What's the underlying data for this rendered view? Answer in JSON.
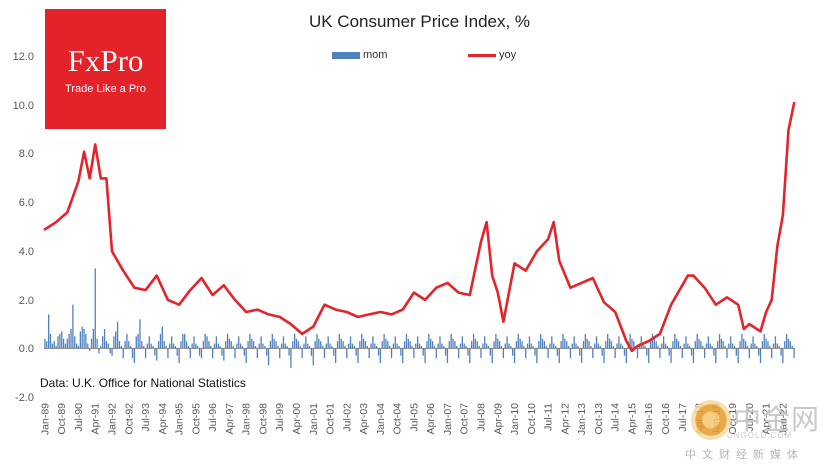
{
  "logo": {
    "name": "FxPro",
    "slogan": "Trade Like a Pro"
  },
  "source_note": "Data: U.K. Office for National Statistics",
  "watermark": {
    "brand": "中金网",
    "url": "CNGOLD.COM",
    "subtitle": "中文财经新媒体"
  },
  "colors": {
    "mom": "#4f81bd",
    "yoy": "#e5232b",
    "logo_bg": "#e4222a",
    "axis": "#808080",
    "grid": "#d9d9d9"
  },
  "chart_data": {
    "type": "bar+line",
    "title": "UK Consumer  Price Index, %",
    "legend_placement": "top-center",
    "grid": false,
    "ylim": [
      -2.0,
      12.0
    ],
    "yticks": [
      "-2.0",
      "0.0",
      "2.0",
      "4.0",
      "6.0",
      "8.0",
      "10.0",
      "12.0"
    ],
    "x_start": "Jan-89",
    "x_end": "Jul-22",
    "x_tick_labels": [
      "Jan-89",
      "Oct-89",
      "Jul-90",
      "Apr-91",
      "Jan-92",
      "Oct-92",
      "Jul-93",
      "Apr-94",
      "Jan-95",
      "Oct-95",
      "Jul-96",
      "Apr-97",
      "Jan-98",
      "Oct-98",
      "Jul-99",
      "Apr-00",
      "Jan-01",
      "Oct-01",
      "Jul-02",
      "Apr-03",
      "Jan-04",
      "Oct-04",
      "Jul-05",
      "Apr-06",
      "Jan-07",
      "Oct-07",
      "Jul-08",
      "Apr-09",
      "Jan-10",
      "Oct-10",
      "Jul-11",
      "Apr-12",
      "Jan-13",
      "Oct-13",
      "Jul-14",
      "Apr-15",
      "Jan-16",
      "Oct-16",
      "Jul-17",
      "Apr-18",
      "Jan-19",
      "Oct-19",
      "Jul-20",
      "Apr-21",
      "Jan-22"
    ],
    "series": [
      {
        "name": "mom",
        "type": "bar",
        "values": [
          0.4,
          0.3,
          1.4,
          0.6,
          0.2,
          0.3,
          0.1,
          0.5,
          0.6,
          0.7,
          0.4,
          0.2,
          0.4,
          0.6,
          0.8,
          1.8,
          0.5,
          0.2,
          0.1,
          0.7,
          0.9,
          0.8,
          0.6,
          0.2,
          -0.1,
          0.4,
          0.8,
          3.3,
          0.4,
          -0.2,
          0.1,
          0.5,
          0.8,
          0.3,
          0.2,
          -0.2,
          -0.3,
          0.5,
          0.7,
          1.1,
          0.3,
          0.1,
          -0.4,
          0.3,
          0.6,
          0.3,
          0.1,
          -0.4,
          -0.6,
          0.5,
          0.6,
          1.2,
          0.3,
          0.1,
          -0.4,
          0.2,
          0.5,
          0.2,
          0.1,
          -0.3,
          -0.5,
          0.3,
          0.6,
          0.9,
          0.3,
          0.1,
          -0.4,
          0.2,
          0.5,
          0.2,
          0.1,
          -0.3,
          -0.6,
          0.3,
          0.6,
          0.6,
          0.3,
          0.1,
          -0.4,
          0.2,
          0.5,
          0.2,
          0.1,
          -0.3,
          -0.4,
          0.3,
          0.6,
          0.5,
          0.3,
          0.1,
          -0.4,
          0.2,
          0.5,
          0.2,
          0.1,
          -0.3,
          -0.5,
          0.3,
          0.6,
          0.4,
          0.3,
          0.1,
          -0.4,
          0.2,
          0.5,
          0.2,
          0.1,
          -0.3,
          -0.6,
          0.3,
          0.6,
          0.4,
          0.3,
          0.1,
          -0.4,
          0.2,
          0.5,
          0.2,
          0.1,
          -0.3,
          -0.7,
          0.3,
          0.6,
          0.4,
          0.3,
          0.1,
          -0.4,
          0.2,
          0.5,
          0.2,
          0.1,
          -0.3,
          -0.8,
          0.3,
          0.6,
          0.4,
          0.3,
          0.1,
          -0.4,
          0.2,
          0.5,
          0.2,
          0.1,
          -0.3,
          -0.7,
          0.3,
          0.6,
          0.4,
          0.3,
          0.1,
          -0.4,
          0.2,
          0.5,
          0.2,
          0.1,
          -0.3,
          -0.6,
          0.3,
          0.6,
          0.4,
          0.3,
          0.1,
          -0.4,
          0.2,
          0.5,
          0.2,
          0.1,
          -0.3,
          -0.6,
          0.3,
          0.6,
          0.4,
          0.3,
          0.1,
          -0.4,
          0.2,
          0.5,
          0.2,
          0.1,
          -0.3,
          -0.6,
          0.3,
          0.6,
          0.4,
          0.3,
          0.1,
          -0.4,
          0.2,
          0.5,
          0.2,
          0.1,
          -0.3,
          -0.6,
          0.3,
          0.6,
          0.4,
          0.3,
          0.1,
          -0.4,
          0.2,
          0.5,
          0.2,
          0.1,
          -0.3,
          -0.6,
          0.3,
          0.6,
          0.4,
          0.3,
          0.1,
          -0.4,
          0.2,
          0.5,
          0.2,
          0.1,
          -0.3,
          -0.6,
          0.3,
          0.6,
          0.4,
          0.3,
          0.1,
          -0.4,
          0.2,
          0.5,
          0.2,
          0.1,
          -0.3,
          -0.6,
          0.3,
          0.6,
          0.4,
          0.3,
          0.1,
          -0.4,
          0.2,
          0.5,
          0.2,
          0.1,
          -0.3,
          -0.6,
          0.3,
          0.6,
          0.4,
          0.3,
          0.1,
          -0.4,
          0.2,
          0.5,
          0.2,
          0.1,
          -0.3,
          -0.6,
          0.3,
          0.6,
          0.4,
          0.3,
          0.1,
          -0.4,
          0.2,
          0.5,
          0.2,
          0.1,
          -0.3,
          -0.6,
          0.3,
          0.6,
          0.4,
          0.3,
          0.1,
          -0.4,
          0.2,
          0.5,
          0.2,
          0.1,
          -0.3,
          -0.6,
          0.3,
          0.6,
          0.4,
          0.3,
          0.1,
          -0.4,
          0.2,
          0.5,
          0.2,
          0.1,
          -0.3,
          -0.6,
          0.3,
          0.6,
          0.4,
          0.3,
          0.1,
          -0.4,
          0.2,
          0.5,
          0.2,
          0.1,
          -0.3,
          -0.6,
          0.3,
          0.6,
          0.4,
          0.3,
          0.1,
          -0.4,
          0.2,
          0.5,
          0.2,
          0.1,
          -0.3,
          -0.6,
          0.3,
          0.6,
          0.4,
          0.3,
          0.1,
          -0.4,
          0.2,
          0.5,
          0.2,
          0.1,
          -0.3,
          -0.6,
          0.3,
          0.6,
          0.4,
          0.3,
          0.1,
          -0.4,
          0.2,
          0.5,
          0.2,
          0.1,
          -0.3,
          -0.6,
          0.3,
          0.6,
          0.4,
          0.3,
          0.1,
          -0.4,
          0.2,
          0.5,
          0.2,
          0.1,
          -0.3,
          -0.6,
          0.3,
          0.6,
          0.4,
          0.3,
          0.1,
          -0.4,
          0.2,
          0.5,
          0.2,
          0.1,
          -0.3,
          -0.6,
          0.3,
          0.6,
          0.4,
          0.3,
          0.1,
          -0.4,
          0.2,
          0.5,
          0.2,
          0.1,
          -0.3,
          -0.6,
          0.3,
          0.6,
          0.4,
          0.3,
          0.1,
          -0.4,
          0.2,
          0.5,
          0.2,
          0.1,
          -0.3,
          -0.6,
          0.3,
          0.6,
          0.4,
          0.3,
          0.1,
          -0.4,
          0.2,
          0.5,
          0.2,
          0.1,
          -0.3,
          -0.6,
          0.3,
          0.6,
          0.4,
          0.3,
          0.1,
          -0.4,
          0.2,
          0.5,
          0.2,
          0.1,
          -0.3,
          -0.6,
          0.3,
          0.6,
          0.4,
          0.3,
          0.1,
          -0.4,
          0.2,
          0.5,
          0.2,
          0.1,
          -0.3,
          -0.6,
          0.3,
          0.6,
          0.4,
          0.3,
          0.1,
          -0.4,
          0.2,
          0.5,
          0.2,
          0.1,
          -0.3,
          -0.6,
          0.3,
          0.6,
          0.4,
          0.3,
          0.1,
          -0.4,
          0.2,
          0.5,
          0.2,
          0.1,
          -0.3,
          -0.6,
          0.3,
          0.6,
          0.4,
          0.3,
          0.1,
          -0.4,
          0.2,
          0.5,
          0.2,
          0.1,
          -0.3,
          -0.6,
          0.3,
          0.6,
          0.4,
          0.3,
          0.1,
          -0.4,
          0.2,
          0.5,
          0.2,
          0.1,
          -0.3,
          -0.6,
          0.3,
          0.6,
          0.4,
          0.3,
          0.1,
          -0.4,
          0.2,
          0.5,
          0.2,
          0.1,
          -0.3,
          -0.6,
          0.3,
          0.6,
          0.4,
          0.3,
          0.1,
          -0.4,
          0.2,
          0.5,
          0.2,
          0.1,
          -0.3,
          -0.6,
          0.3,
          0.6,
          0.4,
          0.3,
          0.1,
          -0.4,
          0.2,
          0.5,
          0.2,
          0.1,
          -0.3,
          -0.6,
          0.3,
          0.6,
          0.4,
          0.3,
          0.1,
          -0.4,
          0.2,
          0.5,
          0.2,
          0.1,
          -0.3,
          -0.6,
          0.3,
          0.6,
          0.4,
          0.3,
          0.1,
          -0.4,
          0.2,
          0.5,
          0.2,
          0.1,
          -0.3,
          -0.6,
          0.3,
          0.6,
          0.4,
          0.3,
          0.1,
          -0.4,
          0.2,
          0.5,
          0.2,
          0.1,
          -0.3,
          -0.6,
          0.3,
          0.6,
          0.4,
          0.3,
          0.1,
          -0.4,
          0.2,
          0.5,
          0.2,
          0.1,
          -0.3,
          -0.6,
          0.3,
          0.6,
          0.4,
          0.3,
          0.1,
          -0.4,
          0.2,
          0.5,
          0.2,
          0.1,
          -0.3,
          -0.6,
          0.3,
          0.6,
          0.4,
          0.3,
          0.1,
          -0.4,
          0.2,
          0.5,
          0.2,
          0.1,
          -0.3,
          -0.6,
          0.3,
          0.6,
          0.4,
          0.3,
          0.1,
          -0.4,
          0.2,
          0.5,
          0.2,
          0.1,
          -0.3,
          -0.6,
          0.3,
          0.6,
          0.4,
          0.3,
          0.1,
          -0.4,
          0.2,
          0.5,
          0.2,
          0.1,
          -0.3,
          -0.9,
          0.3,
          0.5,
          0.2,
          0.2,
          0.0,
          -0.4,
          0.3,
          0.6,
          0.5,
          0.7,
          0.4,
          0.3,
          -0.6,
          0.5,
          0.6,
          0.5,
          0.4,
          0.3,
          -0.2,
          0.6,
          0.5,
          0.9,
          1.1,
          0.3,
          0.5,
          0.6,
          0.6,
          0.8,
          2.5,
          0.7,
          0.8,
          0.6
        ],
        "note": "monthly percent change"
      },
      {
        "name": "yoy",
        "type": "line",
        "points": [
          [
            "Jan-89",
            4.9
          ],
          [
            "Jul-89",
            5.2
          ],
          [
            "Jan-90",
            5.6
          ],
          [
            "Jul-90",
            6.9
          ],
          [
            "Oct-90",
            8.1
          ],
          [
            "Jan-91",
            7.0
          ],
          [
            "Apr-91",
            8.4
          ],
          [
            "Jul-91",
            7.0
          ],
          [
            "Oct-91",
            7.0
          ],
          [
            "Jan-92",
            4.0
          ],
          [
            "Jul-92",
            3.2
          ],
          [
            "Jan-93",
            2.5
          ],
          [
            "Jul-93",
            2.4
          ],
          [
            "Jan-94",
            3.0
          ],
          [
            "Jul-94",
            2.0
          ],
          [
            "Jan-95",
            1.8
          ],
          [
            "Jul-95",
            2.4
          ],
          [
            "Jan-96",
            2.9
          ],
          [
            "Jul-96",
            2.2
          ],
          [
            "Jan-97",
            2.6
          ],
          [
            "Jul-97",
            2.0
          ],
          [
            "Jan-98",
            1.5
          ],
          [
            "Jul-98",
            1.6
          ],
          [
            "Jan-99",
            1.4
          ],
          [
            "Jul-99",
            1.3
          ],
          [
            "Jan-00",
            1.0
          ],
          [
            "Jul-00",
            0.6
          ],
          [
            "Jan-01",
            0.9
          ],
          [
            "Jul-01",
            1.8
          ],
          [
            "Jan-02",
            1.6
          ],
          [
            "Jul-02",
            1.5
          ],
          [
            "Jan-03",
            1.3
          ],
          [
            "Jul-03",
            1.4
          ],
          [
            "Jan-04",
            1.5
          ],
          [
            "Jul-04",
            1.4
          ],
          [
            "Jan-05",
            1.6
          ],
          [
            "Jul-05",
            2.3
          ],
          [
            "Jan-06",
            2.0
          ],
          [
            "Jul-06",
            2.5
          ],
          [
            "Jan-07",
            2.7
          ],
          [
            "Jul-07",
            2.3
          ],
          [
            "Jan-08",
            2.2
          ],
          [
            "Jul-08",
            4.4
          ],
          [
            "Oct-08",
            5.2
          ],
          [
            "Jan-09",
            3.0
          ],
          [
            "Apr-09",
            2.3
          ],
          [
            "Jul-09",
            1.1
          ],
          [
            "Jan-10",
            3.5
          ],
          [
            "Jul-10",
            3.2
          ],
          [
            "Jan-11",
            4.0
          ],
          [
            "Jul-11",
            4.5
          ],
          [
            "Oct-11",
            5.2
          ],
          [
            "Jan-12",
            3.6
          ],
          [
            "Jul-12",
            2.5
          ],
          [
            "Jan-13",
            2.7
          ],
          [
            "Jul-13",
            2.9
          ],
          [
            "Jan-14",
            1.9
          ],
          [
            "Jul-14",
            1.5
          ],
          [
            "Jan-15",
            0.3
          ],
          [
            "Apr-15",
            -0.1
          ],
          [
            "Jul-15",
            0.1
          ],
          [
            "Jan-16",
            0.3
          ],
          [
            "Jul-16",
            0.6
          ],
          [
            "Jan-17",
            1.8
          ],
          [
            "Jul-17",
            2.6
          ],
          [
            "Oct-17",
            3.0
          ],
          [
            "Jan-18",
            3.0
          ],
          [
            "Jul-18",
            2.5
          ],
          [
            "Jan-19",
            1.8
          ],
          [
            "Jul-19",
            2.1
          ],
          [
            "Jan-20",
            1.8
          ],
          [
            "Apr-20",
            0.8
          ],
          [
            "Jul-20",
            1.0
          ],
          [
            "Jan-21",
            0.7
          ],
          [
            "Apr-21",
            1.5
          ],
          [
            "Jul-21",
            2.0
          ],
          [
            "Oct-21",
            4.2
          ],
          [
            "Jan-22",
            5.5
          ],
          [
            "Apr-22",
            9.0
          ],
          [
            "Jul-22",
            10.1
          ]
        ]
      }
    ]
  }
}
